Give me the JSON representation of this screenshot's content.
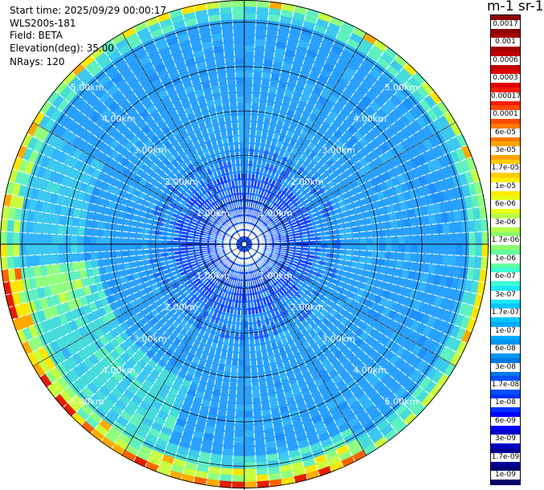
{
  "info": {
    "start_time": "Start time: 2025/09/29 00:00:17",
    "instrument": "WLS200s-181",
    "field": "Field: BETA",
    "elevation": "Elevation(deg): 35.00",
    "nrays": "NRays: 120"
  },
  "colorbar": {
    "title": "m-1 sr-1",
    "ticks": [
      "0.0017",
      "0.001",
      "0.0006",
      "0.0003",
      "0.00017",
      "0.0001",
      "6e-05",
      "3e-05",
      "1.7e-05",
      "1e-05",
      "6e-06",
      "3e-06",
      "1.7e-06",
      "1e-06",
      "6e-07",
      "3e-07",
      "1.7e-07",
      "1e-07",
      "6e-08",
      "3e-08",
      "1.7e-08",
      "1e-08",
      "6e-09",
      "3e-09",
      "1.7e-09",
      "1e-09"
    ],
    "colors": [
      "#8b0000",
      "#a50000",
      "#c00000",
      "#e00000",
      "#ff1a00",
      "#ff4a00",
      "#ff7a00",
      "#ffa500",
      "#ffcc00",
      "#ffee00",
      "#e6ff1a",
      "#b4ff4a",
      "#8cff6e",
      "#64ffa0",
      "#3cffd2",
      "#1ee6ff",
      "#00c8ff",
      "#00aaff",
      "#0096f0",
      "#0078e6",
      "#0050ff",
      "#0032ff",
      "#0000ff",
      "#0000c8",
      "#000096",
      "#00006e"
    ]
  },
  "chart_data": {
    "type": "heatmap",
    "projection": "polar PPI scan",
    "field": "BETA",
    "elevation_deg": 35.0,
    "nrays": 120,
    "range_rings_km": [
      1.0,
      2.0,
      3.0,
      4.0,
      5.0
    ],
    "range_ring_labels": [
      "1.00km",
      "2.00km",
      "3.00km",
      "4.00km",
      "5.00km"
    ],
    "max_range_km": 5.5,
    "colorbar_scale": "log",
    "vmin": 1e-09,
    "vmax": 0.0017
  }
}
